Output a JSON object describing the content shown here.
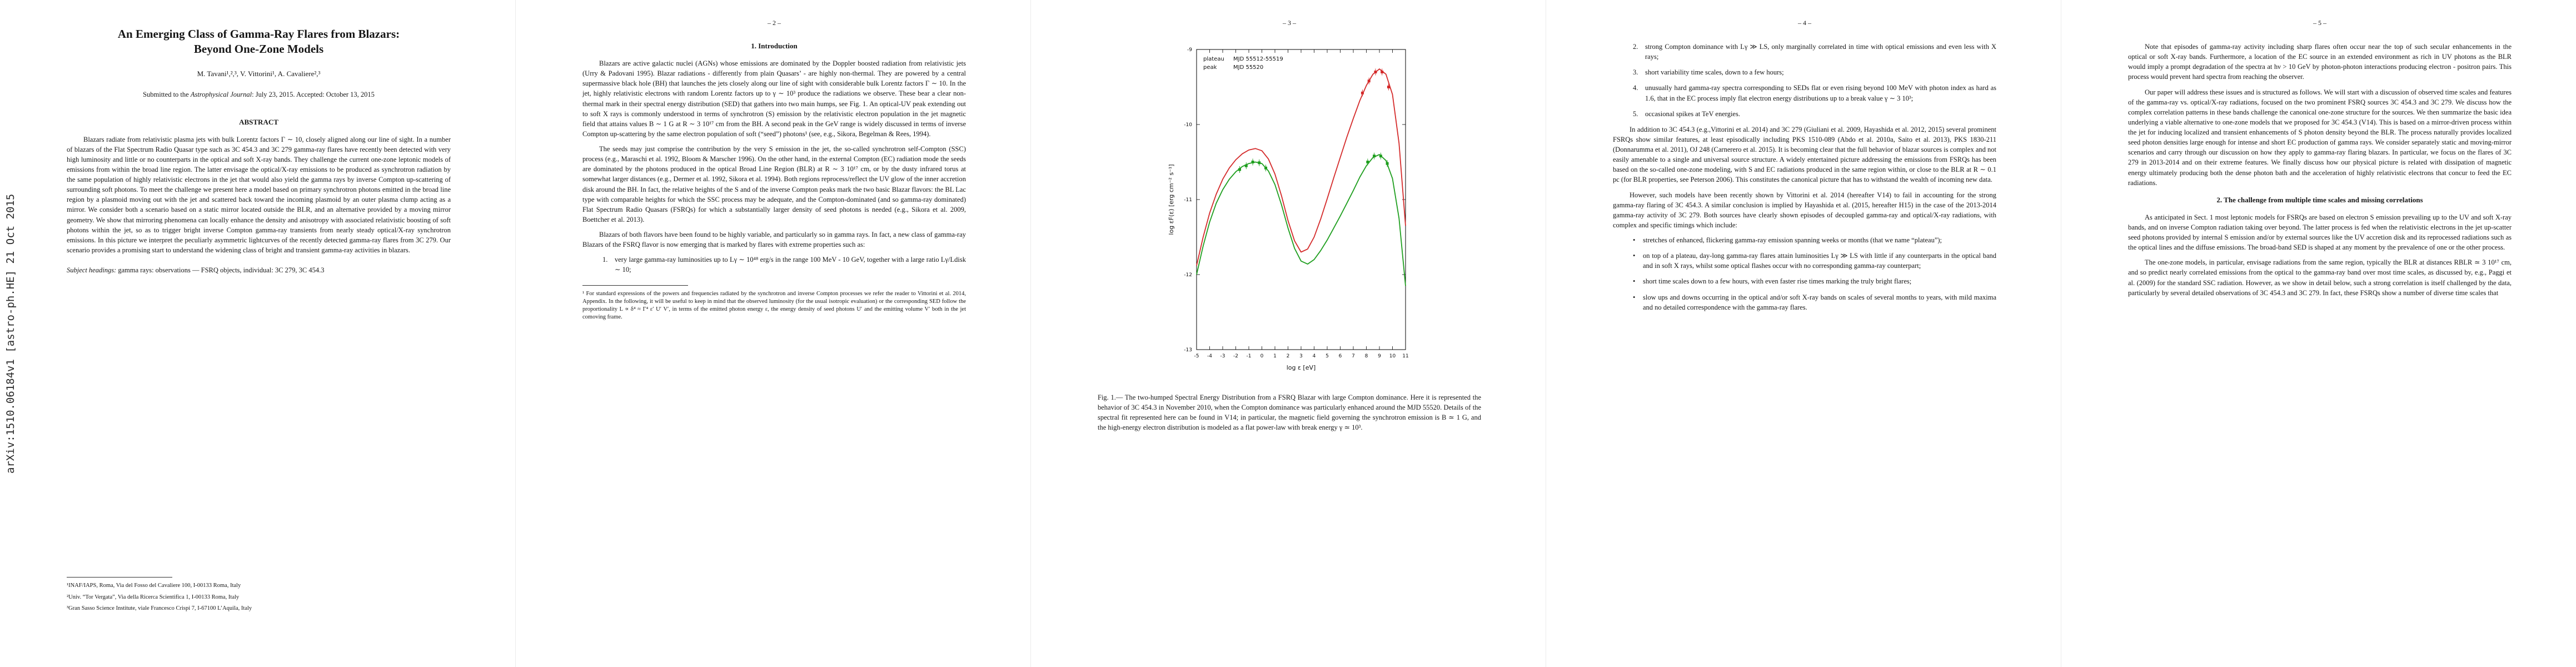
{
  "arxiv_banner": "arXiv:1510.06184v1  [astro-ph.HE]  21 Oct 2015",
  "page1": {
    "title": "An Emerging Class of Gamma-Ray Flares from Blazars: Beyond One-Zone Models",
    "authors": "M. Tavani¹,²,³, V. Vittorini¹, A. Cavaliere²,³",
    "submitted": {
      "prefix": "Submitted to the ",
      "journal": "Astrophysical Journal",
      "suffix": ": July 23, 2015. Accepted: October 13, 2015"
    },
    "abstract_heading": "ABSTRACT",
    "abstract": "Blazars radiate from relativistic plasma jets with bulk Lorentz factors Γ ∼ 10, closely aligned along our line of sight. In a number of blazars of the Flat Spectrum Radio Quasar type such as 3C 454.3 and 3C 279 gamma-ray flares have recently been detected with very high luminosity and little or no counterparts in the optical and soft X-ray bands. They challenge the current one-zone leptonic models of emissions from within the broad line region. The latter envisage the optical/X-ray emissions to be produced as synchrotron radiation by the same population of highly relativistic electrons in the jet that would also yield the gamma rays by inverse Compton up-scattering of surrounding soft photons. To meet the challenge we present here a model based on primary synchrotron photons emitted in the broad line region by a plasmoid moving out with the jet and scattered back toward the incoming plasmoid by an outer plasma clump acting as a mirror. We consider both a scenario based on a static mirror located outside the BLR, and an alternative provided by a moving mirror geometry. We show that mirroring phenomena can locally enhance the density and anisotropy with associated relativistic boosting of soft photons within the jet, so as to trigger bright inverse Compton gamma-ray transients from nearly steady optical/X-ray synchrotron emissions. In this picture we interpret the peculiarly asymmetric lightcurves of the recently detected gamma-ray flares from 3C 279. Our scenario provides a promising start to understand the widening class of bright and transient gamma-ray activities in blazars.",
    "subject": {
      "label": "Subject headings:",
      "text": " gamma rays: observations — FSRQ objects, individual: 3C 279, 3C 454.3"
    },
    "footnotes": [
      "¹INAF/IAPS, Roma, Via del Fosso del Cavaliere 100, I-00133 Roma, Italy",
      "²Univ. “Tor Vergata”, Via della Ricerca Scientifica 1, I-00133 Roma, Italy",
      "³Gran Sasso Science Institute, viale Francesco Crispi 7, I-67100 L’Aquila, Italy"
    ]
  },
  "page2": {
    "page_label": "– 2 –",
    "section_heading": "1.  Introduction",
    "paragraphs": [
      "Blazars are active galactic nuclei (AGNs) whose emissions are dominated by the Doppler boosted radiation from relativistic jets (Urry & Padovani 1995). Blazar radiations - differently from plain Quasars’ - are highly non-thermal. They are powered by a central supermassive black hole (BH) that launches the jets closely along our line of sight with considerable bulk Lorentz factors Γ ∼ 10. In the jet, highly relativistic electrons with random Lorentz factors up to γ ∼ 10³ produce the radiations we observe. These bear a clear non-thermal mark in their spectral energy distribution (SED) that gathers into two main humps, see Fig. 1. An optical-UV peak extending out to soft X rays is commonly understood in terms of synchrotron (S) emission by the relativistic electron population in the jet magnetic field that attains values B ∼ 1 G at R ∼ 3 10¹⁷ cm from the BH. A second peak in the GeV range is widely discussed in terms of inverse Compton up-scattering by the same electron population of soft (“seed”) photons¹ (see, e.g., Sikora, Begelman & Rees, 1994).",
      "The seeds may just comprise the contribution by the very S emission in the jet, the so-called synchrotron self-Compton (SSC) process (e.g., Maraschi et al. 1992, Bloom & Marscher 1996). On the other hand, in the external Compton (EC) radiation mode the seeds are dominated by the photons produced in the optical Broad Line Region (BLR) at R ∼ 3 10¹⁷ cm, or by the dusty infrared torus at somewhat larger distances (e.g., Dermer et al. 1992, Sikora et al. 1994). Both regions reprocess/reflect the UV glow of the inner accretion disk around the BH. In fact, the relative heights of the S and of the inverse Compton peaks mark the two basic Blazar flavors: the BL Lac type with comparable heights for which the SSC process may be adequate, and the Compton-dominated (and so gamma-ray dominated) Flat Spectrum Radio Quasars (FSRQs) for which a substantially larger density of seed photons is needed (e.g., Sikora et al. 2009, Boettcher et al. 2013).",
      "Blazars of both flavors have been found to be highly variable, and particularly so in gamma rays. In fact, a new class of gamma-ray Blazars of the FSRQ flavor is now emerging that is marked by flares with extreme properties such as:"
    ],
    "list": [
      {
        "marker": "1.",
        "text": "very large gamma-ray luminosities up to Lγ ∼ 10⁴⁸ erg/s in the range 100 MeV - 10 GeV, together with a large ratio Lγ/Ldisk ∼ 10;"
      }
    ],
    "footnote": "¹ For standard expressions of the powers and frequencies radiated by the synchrotron and inverse Compton processes we refer the reader to Vittorini et al. 2014, Appendix. In the following, it will be useful to keep in mind that the observed luminosity (for the usual isotropic evaluation) or the corresponding SED follow the proportionality L ∝ δ⁴ ≈ Γ⁴ ε′ U′ V′, in terms of the emitted photon energy ε, the energy density of seed photons U′ and the emitting volume V′ both in the jet comoving frame."
  },
  "page3": {
    "page_label": "– 3 –",
    "figure_caption": "Fig. 1.— The two-humped Spectral Energy Distribution from a FSRQ Blazar with large Compton dominance. Here it is represented the behavior of 3C 454.3 in November 2010, when the Compton dominance was particularly enhanced around the MJD 55520.  Details of the spectral fit represented here can be found in V14; in particular, the magnetic field governing the synchrotron emission is B ≃ 1 G, and the high-energy electron distribution is modeled as a flat power-law with break energy γ ≃ 10³."
  },
  "page4": {
    "page_label": "– 4 –",
    "list": [
      {
        "marker": "2.",
        "text": "strong Compton dominance with Lγ ≫ LS, only marginally correlated in time with optical emissions and even less with X rays;"
      },
      {
        "marker": "3.",
        "text": "short variability time scales, down to a few hours;"
      },
      {
        "marker": "4.",
        "text": "unusually hard gamma-ray spectra corresponding to SEDs flat or even rising beyond 100 MeV with photon index as hard as 1.6, that in the EC process imply flat electron energy distributions up to a break value γ ∼ 3 10³;"
      },
      {
        "marker": "5.",
        "text": "occasional spikes at TeV energies."
      }
    ],
    "paragraphs": [
      "In addition to 3C 454.3 (e.g.,Vittorini et al. 2014) and 3C 279 (Giuliani et al. 2009, Hayashida et al. 2012, 2015) several prominent FSRQs show similar features, at least episodically including PKS 1510-089 (Abdo et al. 2010a, Saito et al. 2013), PKS 1830-211 (Donnarumma et al. 2011), OJ 248 (Carnerero et al. 2015). It is becoming clear that the full behavior of blazar sources is complex and not easily amenable to a single and universal source structure. A widely entertained picture addressing the emissions from FSRQs has been based on the so-called one-zone modeling, with S and EC radiations produced in the same region within, or close to the BLR at R ∼ 0.1 pc (for BLR properties, see Peterson 2006). This constitutes the canonical picture that has to withstand the wealth of incoming new data.",
      "However, such models have been recently shown by Vittorini et al. 2014 (hereafter V14) to fail in accounting for the strong gamma-ray flaring of 3C 454.3. A similar conclusion is implied by Hayashida et al. (2015, hereafter H15) in the case of the 2013-2014 gamma-ray activity of 3C 279. Both sources have clearly shown episodes of decoupled gamma-ray and optical/X-ray radiations, with complex and specific timings which include:"
    ],
    "bullets": [
      {
        "marker": "•",
        "text": "stretches of enhanced, flickering gamma-ray emission spanning weeks or months (that we name “plateau”);"
      },
      {
        "marker": "•",
        "text": "on top of a plateau, day-long gamma-ray flares attain luminosities Lγ ≫ LS with little if any counterparts in the optical band and in soft X rays, whilst some optical flashes occur with no corresponding gamma-ray counterpart;"
      },
      {
        "marker": "•",
        "text": "short time scales down to a few hours, with even faster rise times marking the truly bright flares;"
      },
      {
        "marker": "•",
        "text": "slow ups and downs occurring in the optical and/or soft X-ray bands on scales of several months to years, with mild maxima and no detailed correspondence with the gamma-ray flares."
      }
    ]
  },
  "page5": {
    "page_label": "– 5 –",
    "paragraphs_top": [
      "Note that episodes of gamma-ray activity including sharp flares often occur near the top of such secular enhancements in the optical or soft X-ray bands.  Furthermore, a location of the EC source in an extended environment as rich in UV photons as the BLR would imply a prompt degradation of the spectra at hν > 10 GeV by photon-photon interactions producing electron - positron pairs. This process would prevent hard spectra from reaching the observer.",
      "Our paper will address these issues and is structured as follows. We will start with a discussion of observed time scales and features of the gamma-ray vs. optical/X-ray radiations, focused on the two prominent FSRQ sources 3C 454.3 and 3C 279. We discuss how the complex correlation patterns in these bands challenge the canonical one-zone structure for the sources. We then summarize the basic idea underlying a viable alternative to one-zone models that we proposed for 3C 454.3 (V14). This is based on a mirror-driven process within the jet for inducing localized and transient enhancements of S photon density beyond the BLR. The process naturally provides localized seed photon densities large enough for intense and short EC production of gamma rays. We consider separately static and moving-mirror scenarios and carry through our discussion on how they apply to gamma-ray flaring blazars. In particular, we focus on the flares of 3C 279 in 2013-2014 and on their extreme features. We finally discuss how our physical picture is related with dissipation of magnetic energy ultimately producing both the dense photon bath and the acceleration of highly relativistic electrons that concur to feed the EC radiations."
    ],
    "section_heading": "2.  The challenge from multiple time scales and missing correlations",
    "paragraphs_bottom": [
      "As anticipated in Sect. 1 most leptonic models for FSRQs are based on electron S emission prevailing up to the UV and soft X-ray bands, and on inverse Compton radiation taking over beyond. The latter process is fed when the relativistic electrons in the jet up-scatter seed photons provided by internal S emission and/or by external sources like the UV accretion disk and its reprocessed radiations such as the optical lines and the diffuse emissions. The broad-band SED is shaped at any moment by the prevalence of one or the other process.",
      "The one-zone models, in particular, envisage radiations from the same region, typically the BLR at distances RBLR ≃ 3 10¹⁷ cm, and so predict nearly correlated emissions from the optical to the gamma-ray band over most time scales, as discussed by, e.g., Paggi et al. (2009) for the standard SSC radiation. However, as we show in detail below, such a strong correlation is itself challenged by the data, particularly by several detailed observations of 3C 454.3 and 3C 279. In fact, these FSRQs show a number of diverse time scales that"
    ]
  },
  "chart_data": {
    "type": "line",
    "title": "",
    "xlabel": "log ε [eV]",
    "ylabel": "log εF(ε) [erg cm⁻² s⁻¹]",
    "xlim": [
      -5,
      11
    ],
    "ylim": [
      -13,
      -9
    ],
    "xticks": [
      -5,
      -4,
      -3,
      -2,
      -1,
      0,
      1,
      2,
      3,
      4,
      5,
      6,
      7,
      8,
      9,
      10,
      11
    ],
    "yticks": [
      -13,
      -12,
      -11,
      -10,
      -9
    ],
    "legend_position": "top-left",
    "grid": false,
    "series": [
      {
        "name": "plateau",
        "mjd": "MJD 55512-55519",
        "color": "#1e9e1e",
        "points": [
          [
            -5,
            -12.0
          ],
          [
            -4.5,
            -11.62
          ],
          [
            -4,
            -11.3
          ],
          [
            -3.5,
            -11.05
          ],
          [
            -3,
            -10.87
          ],
          [
            -2.5,
            -10.73
          ],
          [
            -2,
            -10.63
          ],
          [
            -1.5,
            -10.56
          ],
          [
            -1,
            -10.52
          ],
          [
            -0.5,
            -10.5
          ],
          [
            0,
            -10.52
          ],
          [
            0.5,
            -10.62
          ],
          [
            1,
            -10.8
          ],
          [
            1.5,
            -11.07
          ],
          [
            2,
            -11.38
          ],
          [
            2.5,
            -11.65
          ],
          [
            3,
            -11.82
          ],
          [
            3.5,
            -11.86
          ],
          [
            4,
            -11.8
          ],
          [
            4.5,
            -11.68
          ],
          [
            5,
            -11.54
          ],
          [
            5.5,
            -11.38
          ],
          [
            6,
            -11.22
          ],
          [
            6.5,
            -11.05
          ],
          [
            7,
            -10.88
          ],
          [
            7.5,
            -10.7
          ],
          [
            8,
            -10.55
          ],
          [
            8.5,
            -10.44
          ],
          [
            9,
            -10.4
          ],
          [
            9.5,
            -10.48
          ],
          [
            10,
            -10.72
          ],
          [
            10.5,
            -11.25
          ],
          [
            11,
            -12.15
          ]
        ],
        "markers": [
          [
            -1.7,
            -10.6
          ],
          [
            -1.2,
            -10.55
          ],
          [
            -0.7,
            -10.5
          ],
          [
            -0.2,
            -10.51
          ],
          [
            0.3,
            -10.58
          ],
          [
            8.1,
            -10.5
          ],
          [
            8.6,
            -10.42
          ],
          [
            9.1,
            -10.42
          ],
          [
            9.6,
            -10.52
          ]
        ]
      },
      {
        "name": "peak",
        "mjd": "MJD 55520",
        "color": "#d42a2a",
        "points": [
          [
            -5,
            -11.88
          ],
          [
            -4.5,
            -11.5
          ],
          [
            -4,
            -11.18
          ],
          [
            -3.5,
            -10.93
          ],
          [
            -3,
            -10.73
          ],
          [
            -2.5,
            -10.58
          ],
          [
            -2,
            -10.47
          ],
          [
            -1.5,
            -10.39
          ],
          [
            -1,
            -10.34
          ],
          [
            -0.5,
            -10.32
          ],
          [
            0,
            -10.35
          ],
          [
            0.5,
            -10.46
          ],
          [
            1,
            -10.66
          ],
          [
            1.5,
            -10.95
          ],
          [
            2,
            -11.28
          ],
          [
            2.5,
            -11.55
          ],
          [
            3,
            -11.7
          ],
          [
            3.5,
            -11.66
          ],
          [
            4,
            -11.5
          ],
          [
            4.5,
            -11.26
          ],
          [
            5,
            -10.99
          ],
          [
            5.5,
            -10.71
          ],
          [
            6,
            -10.44
          ],
          [
            6.5,
            -10.17
          ],
          [
            7,
            -9.92
          ],
          [
            7.5,
            -9.68
          ],
          [
            8,
            -9.48
          ],
          [
            8.5,
            -9.33
          ],
          [
            9,
            -9.26
          ],
          [
            9.5,
            -9.33
          ],
          [
            10,
            -9.6
          ],
          [
            10.5,
            -10.25
          ],
          [
            11,
            -11.35
          ]
        ],
        "markers": [
          [
            7.7,
            -9.58
          ],
          [
            8.2,
            -9.42
          ],
          [
            8.7,
            -9.3
          ],
          [
            9.2,
            -9.3
          ],
          [
            9.7,
            -9.5
          ]
        ]
      }
    ]
  }
}
